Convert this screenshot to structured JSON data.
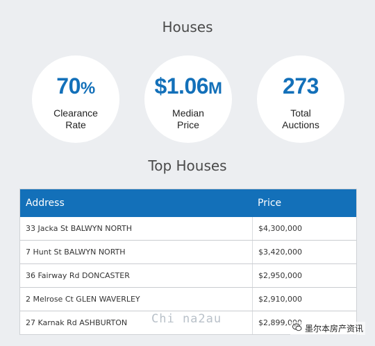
{
  "houses_title": "Houses",
  "stats": {
    "clearance": {
      "value": "70",
      "unit": "%",
      "label": "Clearance\nRate"
    },
    "median": {
      "value": "$1.06",
      "unit": "M",
      "label": "Median\nPrice"
    },
    "total": {
      "value": "273",
      "unit": "",
      "label": "Total\nAuctions"
    }
  },
  "top_houses_title": "Top Houses",
  "table": {
    "headers": {
      "address": "Address",
      "price": "Price"
    },
    "rows": [
      {
        "address": "33 Jacka St BALWYN NORTH",
        "price": "$4,300,000"
      },
      {
        "address": "7 Hunt St BALWYN NORTH",
        "price": "$3,420,000"
      },
      {
        "address": "36 Fairway Rd DONCASTER",
        "price": "$2,950,000"
      },
      {
        "address": "2 Melrose Ct GLEN WAVERLEY",
        "price": "$2,910,000"
      },
      {
        "address": "27 Karnak Rd ASHBURTON",
        "price": "$2,899,000"
      }
    ]
  },
  "watermark": "Chi na2au",
  "badge": {
    "icon": "wechat-icon",
    "text": "墨尔本房产资讯"
  },
  "colors": {
    "accent": "#1370b9",
    "background": "#eceef1"
  }
}
